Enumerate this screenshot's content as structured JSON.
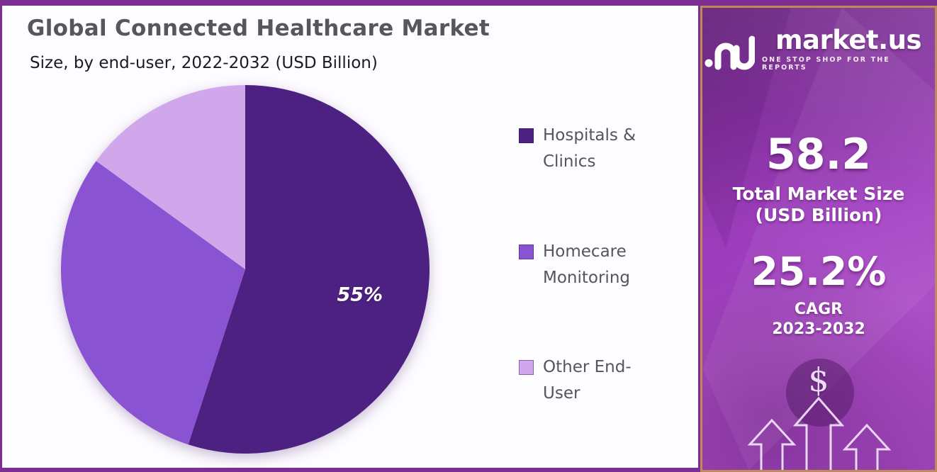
{
  "page": {
    "title": "Global Connected Healthcare Market",
    "subtitle": "Size, by end-user, 2022-2032 (USD Billion)"
  },
  "chart_data": {
    "type": "pie",
    "title": "Global Connected Healthcare Market",
    "subtitle": "Size, by end-user, 2022-2032 (USD Billion)",
    "unit": "% share",
    "start_angle_deg": 0,
    "direction": "clockwise",
    "legend_position": "right",
    "slices": [
      {
        "label": "Hospitals & Clinics",
        "value": 55,
        "color": "#4d2181",
        "data_label": "55%"
      },
      {
        "label": "Homecare Monitoring",
        "value": 30,
        "color": "#8a53d2",
        "data_label": ""
      },
      {
        "label": "Other End-User",
        "value": 15,
        "color": "#d0a7eb",
        "data_label": ""
      }
    ]
  },
  "sidebar": {
    "brand": {
      "name": "market.us",
      "tagline": "ONE STOP SHOP FOR THE REPORTS"
    },
    "stats": [
      {
        "value": "58.2",
        "label_line1": "Total Market Size",
        "label_line2": "(USD Billion)"
      },
      {
        "value": "25.2%",
        "label_line1": "CAGR",
        "label_line2": "2023-2032"
      }
    ],
    "dollar_symbol": "$"
  },
  "colors": {
    "frame": "#7c2e93",
    "panel_bg": "#fdfcff",
    "title_text": "#57575b",
    "legend_text": "#55565a",
    "sidebar_border": "#c08a58",
    "sidebar_gradient_top": "#6f2b84",
    "sidebar_gradient_mid": "#a440c4",
    "arrow_outline": "#eedff7"
  }
}
